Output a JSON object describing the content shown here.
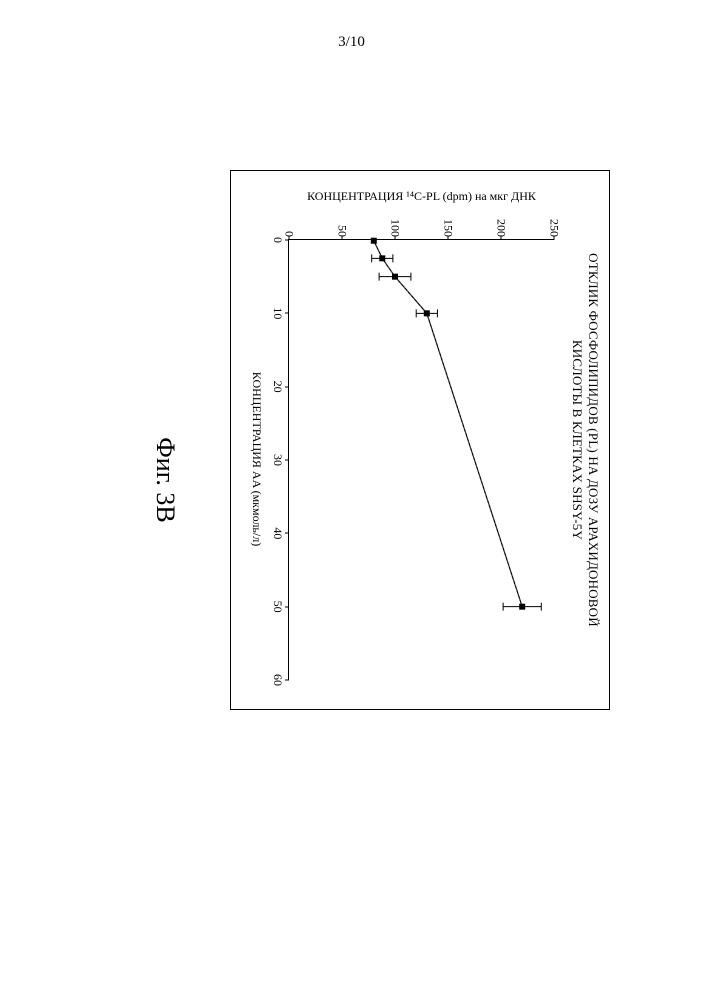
{
  "page_number_label": "3/10",
  "figure_caption": "Фиг. 3B",
  "chart": {
    "type": "line",
    "title_line1": "ОТКЛИК ФОСФОЛИПИДОВ (PL) НА ДОЗУ АРАХИДОНОВОЙ",
    "title_line2": "КИСЛОТЫ В КЛЕТКАХ SHSY-5Y",
    "xlabel": "КОНЦЕНТРАЦИЯ AA (мкмоль/л)",
    "ylabel": "КОНЦЕНТРАЦИЯ ¹⁴C-PL (dpm) на мкг ДНК",
    "xlim": [
      0,
      60
    ],
    "ylim": [
      0,
      250
    ],
    "xtick_step": 10,
    "ytick_step": 50,
    "xticks": [
      0,
      10,
      20,
      30,
      40,
      50,
      60
    ],
    "yticks": [
      0,
      50,
      100,
      150,
      200,
      250
    ],
    "background_color": "#ffffff",
    "border_color": "#000000",
    "text_color": "#000000",
    "title_fontsize": 13,
    "label_fontsize": 12,
    "tick_fontsize": 12,
    "line_color": "#000000",
    "line_width": 1.2,
    "marker_shape": "square",
    "marker_size": 6,
    "marker_fill": "#000000",
    "errorbar_color": "#000000",
    "errorbar_capwidth": 8,
    "series": {
      "x": [
        0.1,
        2.5,
        5,
        10,
        50
      ],
      "y": [
        80,
        88,
        100,
        130,
        220
      ],
      "yerr": [
        0,
        10,
        15,
        10,
        18
      ]
    }
  }
}
